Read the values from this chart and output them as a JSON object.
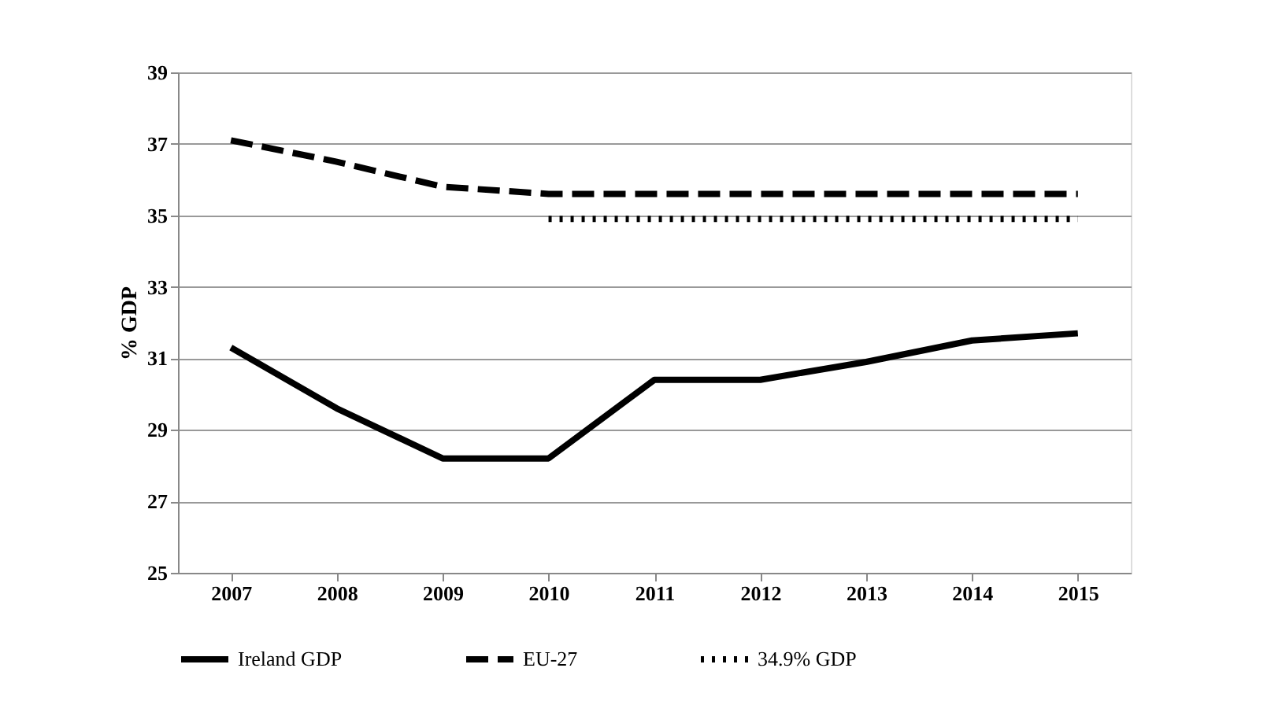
{
  "chart_data": {
    "type": "line",
    "ylabel": "% GDP",
    "categories": [
      "2007",
      "2008",
      "2009",
      "2010",
      "2011",
      "2012",
      "2013",
      "2014",
      "2015"
    ],
    "series": [
      {
        "name": "Ireland GDP",
        "color": "#000000",
        "line_style": "solid",
        "values": [
          31.3,
          29.6,
          28.2,
          28.2,
          30.4,
          30.4,
          30.9,
          31.5,
          31.7
        ]
      },
      {
        "name": "EU-27",
        "color": "#000000",
        "line_style": "dashed",
        "values": [
          37.1,
          36.5,
          35.8,
          35.6,
          35.6,
          35.6,
          35.6,
          35.6,
          35.6
        ]
      },
      {
        "name": "34.9% GDP",
        "color": "#000000",
        "line_style": "dotted",
        "values": [
          null,
          null,
          null,
          34.9,
          34.9,
          34.9,
          34.9,
          34.9,
          34.9
        ]
      }
    ],
    "ylim": [
      25,
      39
    ],
    "yticks": [
      25,
      27,
      29,
      31,
      33,
      35,
      37,
      39
    ],
    "grid": "y",
    "legend": "bottom",
    "marker": "none"
  }
}
